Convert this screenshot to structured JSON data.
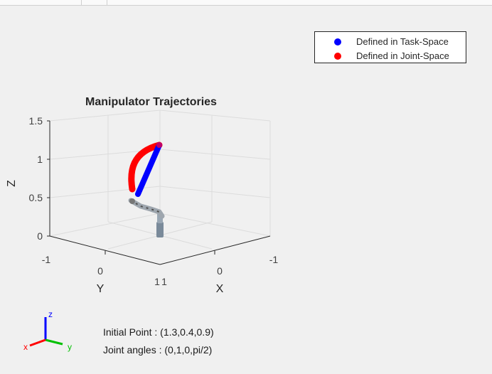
{
  "figure": {
    "title": "Manipulator Trajectories"
  },
  "legend": {
    "entries": [
      {
        "label": "Defined in Task-Space",
        "color": "#0000ff"
      },
      {
        "label": "Defined in Joint-Space",
        "color": "#ff0000"
      }
    ]
  },
  "axes": {
    "z_label": "Z",
    "y_label": "Y",
    "x_label": "X",
    "z_ticks": [
      "1.5",
      "1",
      "0.5",
      "0"
    ],
    "y_ticks": [
      "-1",
      "0",
      "1"
    ],
    "x_ticks": [
      "1",
      "0",
      "-1"
    ]
  },
  "triad": {
    "x_label": "x",
    "y_label": "y",
    "z_label": "z",
    "x_color": "#ff0000",
    "y_color": "#00c000",
    "z_color": "#0000ff"
  },
  "info": {
    "initial_point": "Initial Point : (1.3,0.4,0.9)",
    "joint_angles": "Joint angles : (0,1,0,pi/2)"
  }
}
